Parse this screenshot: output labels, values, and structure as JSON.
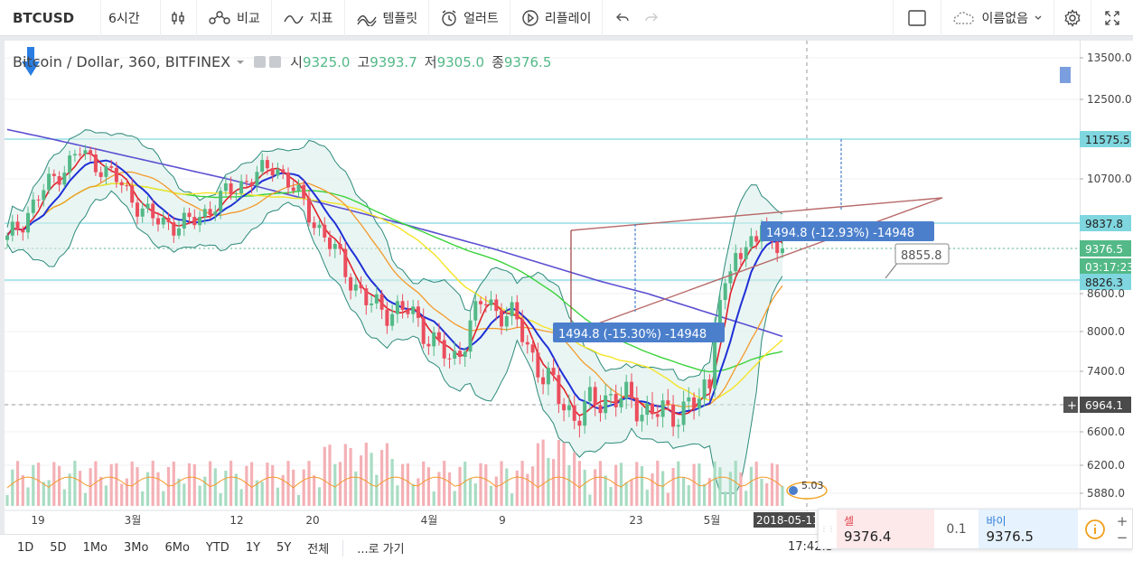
{
  "toolbar": {
    "symbol": "BTCUSD",
    "interval": "6시간",
    "compare": "비교",
    "indicators": "지표",
    "templates": "템플릿",
    "alerts": "얼러트",
    "replay": "리플레이",
    "layout_name": "이름없음"
  },
  "legend": {
    "title": "Bitcoin / Dollar, 360, BITFINEX",
    "open_label": "시",
    "open": "9325.0",
    "high_label": "고",
    "high": "9393.7",
    "low_label": "저",
    "low": "9305.0",
    "close_label": "종",
    "close": "9376.5"
  },
  "price_axis": {
    "ticks": [
      "13500.0",
      "12500.0",
      "11575.5",
      "10700.0",
      "9837.8",
      "9376.5",
      "03:17:23",
      "8826.3",
      "8600.0",
      "8000.0",
      "7400.0",
      "6964.1",
      "6600.0",
      "6200.0",
      "5880.0"
    ]
  },
  "time_axis": {
    "ticks": [
      "19",
      "3월",
      "12",
      "20",
      "4월",
      "9",
      "23",
      "5월"
    ],
    "cursor_date": "2018-05-11"
  },
  "annotations": {
    "measure_upper": "1494.8 (-12.93%) -14948",
    "measure_lower": "1494.8 (-15.30%) -14948",
    "callout": "8855.8",
    "event_badge": "5.03"
  },
  "range_bar": {
    "buttons": [
      "1D",
      "5D",
      "1Mo",
      "3Mo",
      "6Mo",
      "YTD",
      "1Y",
      "5Y",
      "전체"
    ],
    "goto": "...로 가기",
    "time": "17:42:3"
  },
  "trade": {
    "sell_label": "셀",
    "sell_price": "9376.4",
    "quantity": "0.1",
    "buy_label": "바이",
    "buy_price": "9376.5"
  },
  "colors": {
    "up": "#53b987",
    "down": "#eb4d5c",
    "ma_blue": "#1f2fd6",
    "ma_red": "#e0212a",
    "ma_orange": "#f39a2c",
    "ma_yellow": "#f4e426",
    "ma_green": "#3bd33b",
    "ma_purple": "#5b4fd1",
    "bollinger": "#2c8a7a",
    "hline": "#7fd6df",
    "accent": "#4b7fcc"
  }
}
